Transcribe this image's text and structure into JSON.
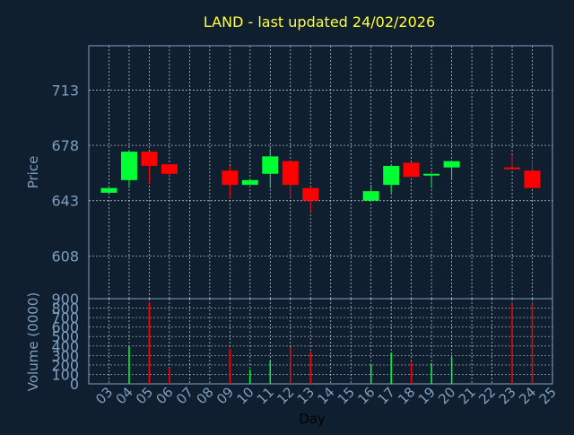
{
  "chart_data": [
    {
      "type": "candlestick",
      "title": "LAND - last updated 24/02/2026",
      "ylabel": "Price",
      "xlabel": "",
      "ylim": [
        581,
        741
      ],
      "yticks": [
        608,
        643,
        678,
        713
      ],
      "grid": true,
      "up_color": "#00ff33",
      "down_color": "#ff0000",
      "candles": [
        {
          "day": 3,
          "open": 648,
          "close": 651,
          "high": 651,
          "low": 648
        },
        {
          "day": 4,
          "open": 656,
          "close": 674,
          "high": 674,
          "low": 651
        },
        {
          "day": 5,
          "open": 674,
          "close": 665,
          "high": 674,
          "low": 654
        },
        {
          "day": 6,
          "open": 666,
          "close": 660,
          "high": 666,
          "low": 659
        },
        {
          "day": 9,
          "open": 662,
          "close": 653,
          "high": 665,
          "low": 645
        },
        {
          "day": 10,
          "open": 653,
          "close": 656,
          "high": 657,
          "low": 653
        },
        {
          "day": 11,
          "open": 660,
          "close": 671,
          "high": 676,
          "low": 651
        },
        {
          "day": 12,
          "open": 668,
          "close": 653,
          "high": 668,
          "low": 645
        },
        {
          "day": 13,
          "open": 651,
          "close": 643,
          "high": 651,
          "low": 636
        },
        {
          "day": 16,
          "open": 643,
          "close": 649,
          "high": 653,
          "low": 643
        },
        {
          "day": 17,
          "open": 653,
          "close": 665,
          "high": 665,
          "low": 648
        },
        {
          "day": 18,
          "open": 667,
          "close": 658,
          "high": 667,
          "low": 658
        },
        {
          "day": 19,
          "open": 659,
          "close": 660,
          "high": 660,
          "low": 651
        },
        {
          "day": 20,
          "open": 664,
          "close": 668,
          "high": 668,
          "low": 657
        },
        {
          "day": 23,
          "open": 664,
          "close": 663,
          "high": 672,
          "low": 663
        },
        {
          "day": 24,
          "open": 662,
          "close": 651,
          "high": 668,
          "low": 651
        }
      ]
    },
    {
      "type": "bar",
      "ylabel": "Volume (0000)",
      "xlabel": "Day",
      "ylim": [
        0,
        900
      ],
      "yticks": [
        0,
        100,
        200,
        300,
        400,
        500,
        600,
        700,
        800,
        900
      ],
      "x_tick_labels": [
        "03",
        "04",
        "05",
        "06",
        "07",
        "08",
        "09",
        "10",
        "11",
        "12",
        "13",
        "14",
        "15",
        "16",
        "17",
        "18",
        "19",
        "20",
        "21",
        "22",
        "23",
        "24",
        "25"
      ],
      "bars": [
        {
          "day": 4,
          "value": 390,
          "color": "#00ff33"
        },
        {
          "day": 5,
          "value": 860,
          "color": "#ff0000"
        },
        {
          "day": 6,
          "value": 170,
          "color": "#ff0000"
        },
        {
          "day": 9,
          "value": 370,
          "color": "#ff0000"
        },
        {
          "day": 10,
          "value": 150,
          "color": "#00ff33"
        },
        {
          "day": 11,
          "value": 250,
          "color": "#00ff33"
        },
        {
          "day": 12,
          "value": 390,
          "color": "#ff0000"
        },
        {
          "day": 13,
          "value": 340,
          "color": "#ff0000"
        },
        {
          "day": 16,
          "value": 200,
          "color": "#00ff33"
        },
        {
          "day": 17,
          "value": 330,
          "color": "#00ff33"
        },
        {
          "day": 18,
          "value": 230,
          "color": "#ff0000"
        },
        {
          "day": 19,
          "value": 220,
          "color": "#00ff33"
        },
        {
          "day": 20,
          "value": 280,
          "color": "#00ff33"
        },
        {
          "day": 23,
          "value": 860,
          "color": "#ff0000"
        },
        {
          "day": 24,
          "value": 860,
          "color": "#ff0000"
        }
      ]
    }
  ],
  "colors": {
    "background": "#0f1f30",
    "title": "#ffff33",
    "axis_text": "#7f9fbf",
    "grid": "#ffffff"
  }
}
